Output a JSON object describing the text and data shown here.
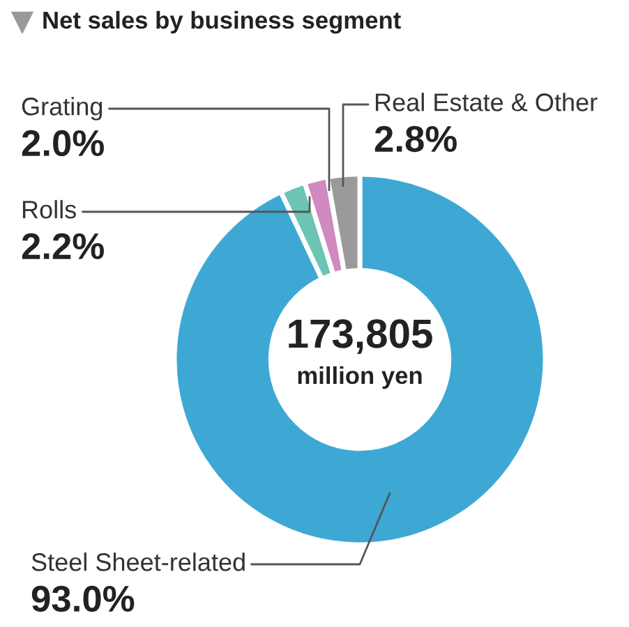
{
  "chart_data": {
    "type": "donut",
    "title": "Net sales by business segment",
    "categories": [
      "Steel Sheet-related",
      "Rolls",
      "Grating",
      "Real Estate & Other"
    ],
    "values": [
      93.0,
      2.2,
      2.0,
      2.8
    ],
    "value_labels": [
      "93.0%",
      "2.2%",
      "2.0%",
      "2.8%"
    ],
    "colors": [
      "#3ea8d5",
      "#6cc4b4",
      "#d08ac0",
      "#9a9a9a"
    ],
    "annotations": [
      "173,805",
      "million yen"
    ],
    "legend": false
  }
}
